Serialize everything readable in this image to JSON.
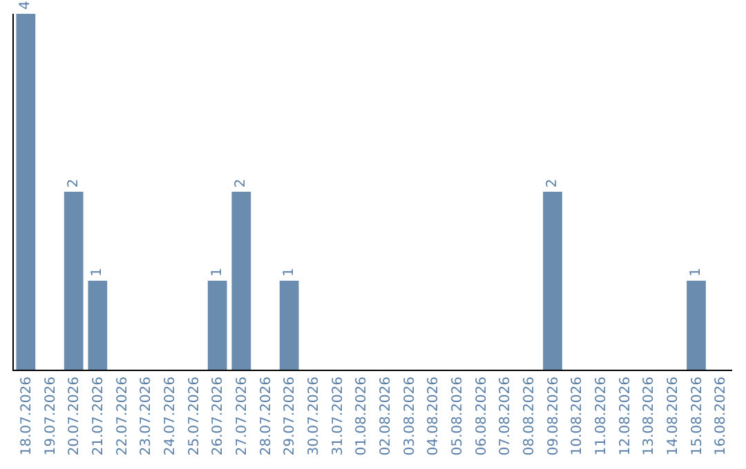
{
  "chart_data": {
    "type": "bar",
    "categories": [
      "18.07.2026",
      "19.07.2026",
      "20.07.2026",
      "21.07.2026",
      "22.07.2026",
      "23.07.2026",
      "24.07.2026",
      "25.07.2026",
      "26.07.2026",
      "27.07.2026",
      "28.07.2026",
      "29.07.2026",
      "30.07.2026",
      "31.07.2026",
      "01.08.2026",
      "02.08.2026",
      "03.08.2026",
      "04.08.2026",
      "05.08.2026",
      "06.08.2026",
      "07.08.2026",
      "08.08.2026",
      "09.08.2026",
      "10.08.2026",
      "11.08.2026",
      "12.08.2026",
      "13.08.2026",
      "14.08.2026",
      "15.08.2026",
      "16.08.2026"
    ],
    "values": [
      4,
      0,
      2,
      1,
      0,
      0,
      0,
      0,
      1,
      2,
      0,
      1,
      0,
      0,
      0,
      0,
      0,
      0,
      0,
      0,
      0,
      0,
      2,
      0,
      0,
      0,
      0,
      0,
      1,
      0
    ],
    "value_labels": [
      "4",
      null,
      "2",
      "1",
      null,
      null,
      null,
      null,
      "1",
      "2",
      null,
      "1",
      null,
      null,
      null,
      null,
      null,
      null,
      null,
      null,
      null,
      null,
      "2",
      null,
      null,
      null,
      null,
      null,
      "1",
      null
    ],
    "color": "#6a8caf",
    "ylim": [
      0,
      4
    ],
    "grid": false,
    "legend": false
  }
}
